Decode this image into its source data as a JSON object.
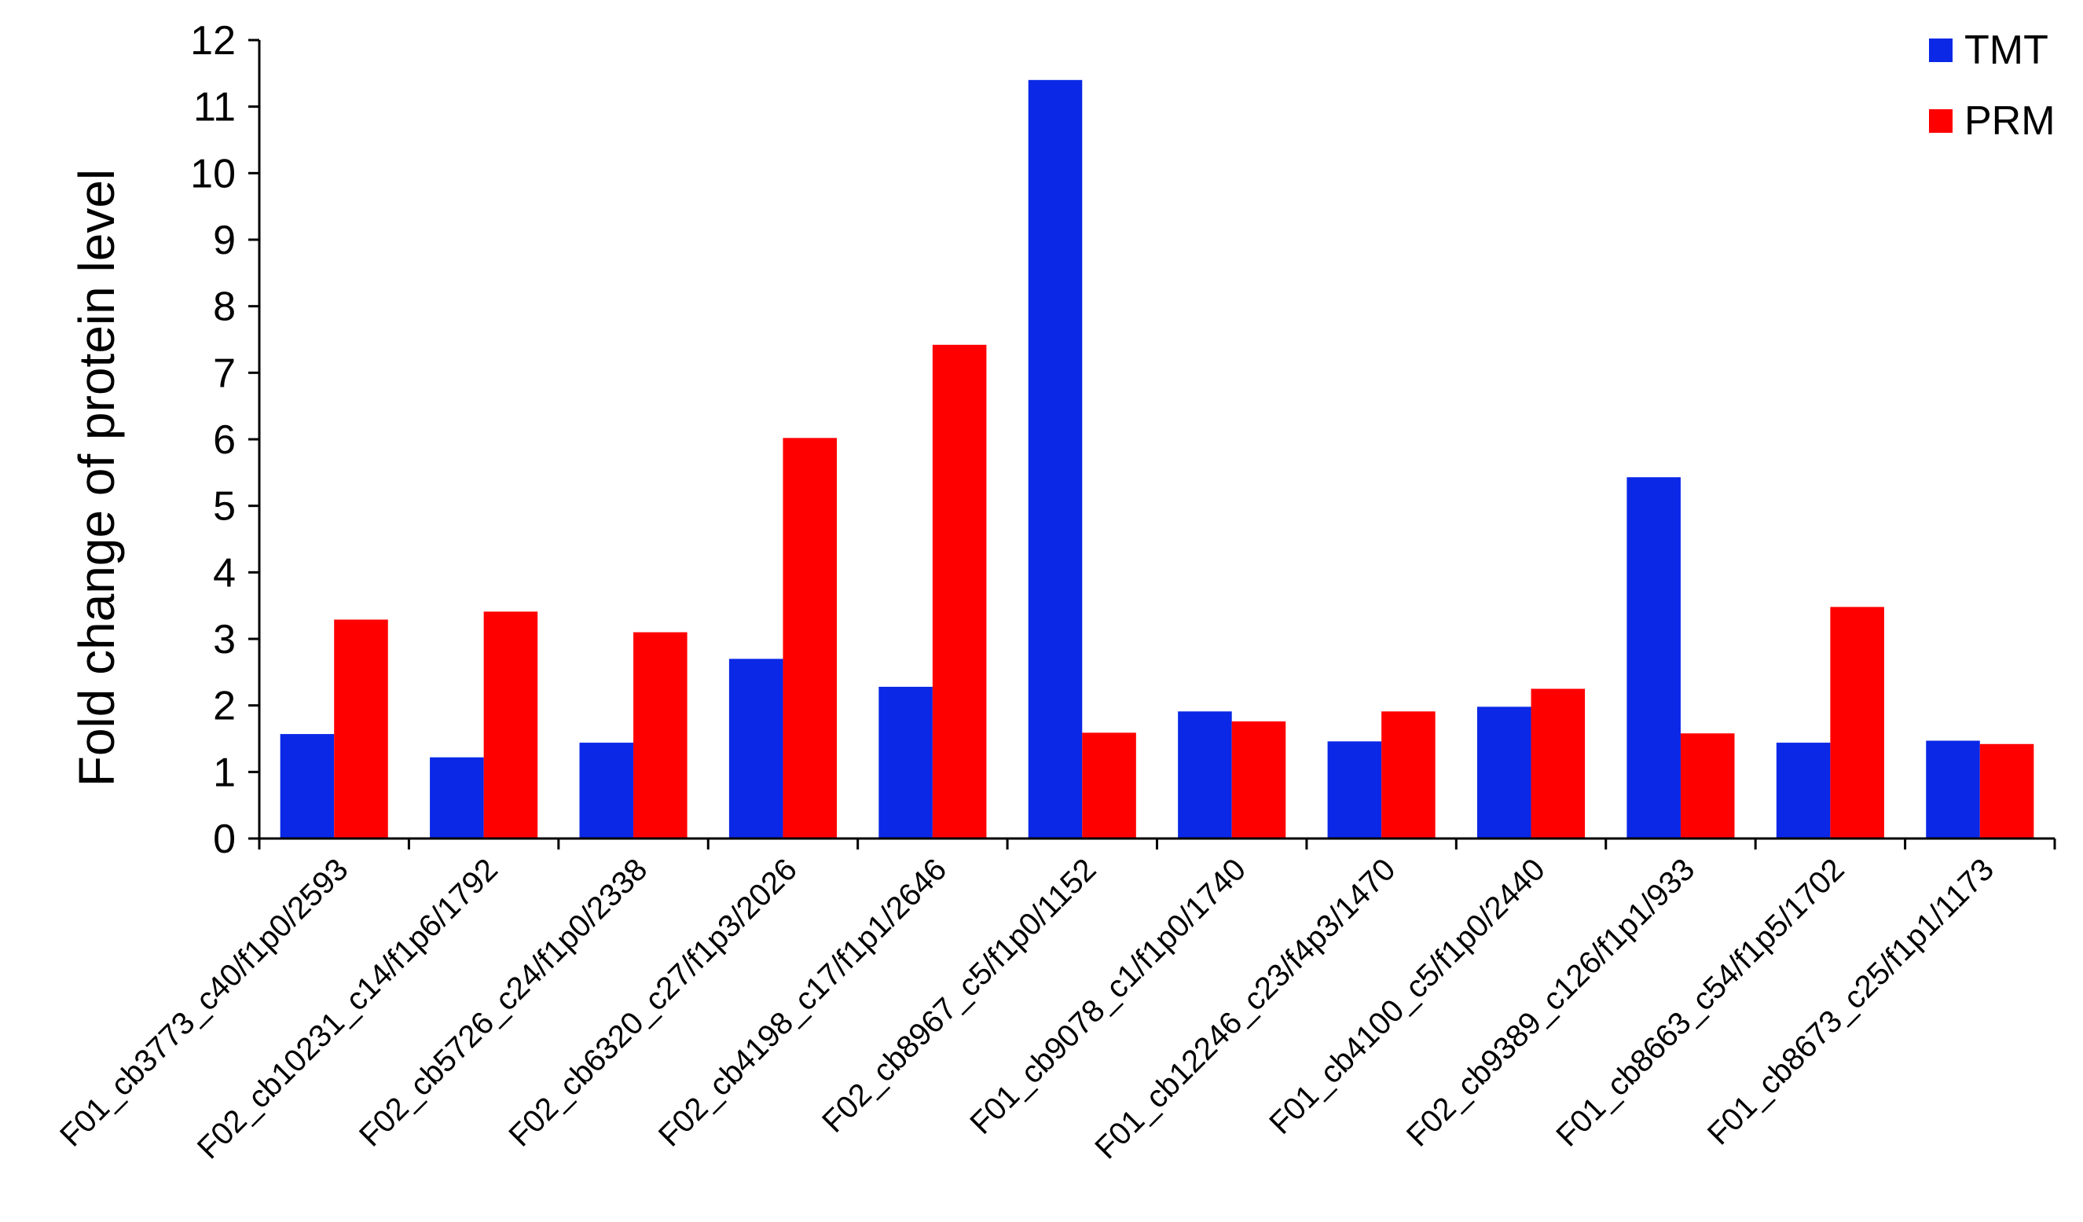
{
  "chart_data": {
    "type": "bar",
    "title": "",
    "xlabel": "",
    "ylabel": "Fold change of protein level",
    "ylim": [
      0,
      12
    ],
    "yticks": [
      "0",
      "1",
      "2",
      "3",
      "4",
      "5",
      "6",
      "7",
      "8",
      "9",
      "10",
      "11",
      "12"
    ],
    "grid": false,
    "legend_position": "top-right",
    "categories": [
      "F01_cb3773_c40/f1p0/2593",
      "F02_cb10231_c14/f1p6/1792",
      "F02_cb5726_c24/f1p0/2338",
      "F02_cb6320_c27/f1p3/2026",
      "F02_cb4198_c17/f1p1/2646",
      "F02_cb8967_c5/f1p0/1152",
      "F01_cb9078_c1/f1p0/1740",
      "F01_cb12246_c23/f4p3/1470",
      "F01_cb4100_c5/f1p0/2440",
      "F02_cb9389_c126/f1p1/933",
      "F01_cb8663_c54/f1p5/1702",
      "F01_cb8673_c25/f1p1/1173"
    ],
    "series": [
      {
        "name": "TMT",
        "color": "#0a28e6",
        "values": [
          1.57,
          1.22,
          1.44,
          2.7,
          2.28,
          11.4,
          1.91,
          1.46,
          1.98,
          5.43,
          1.44,
          1.47
        ]
      },
      {
        "name": "PRM",
        "color": "#ff0000",
        "values": [
          3.29,
          3.41,
          3.1,
          6.02,
          7.42,
          1.59,
          1.76,
          1.91,
          2.25,
          1.58,
          3.48,
          1.42
        ]
      }
    ]
  }
}
